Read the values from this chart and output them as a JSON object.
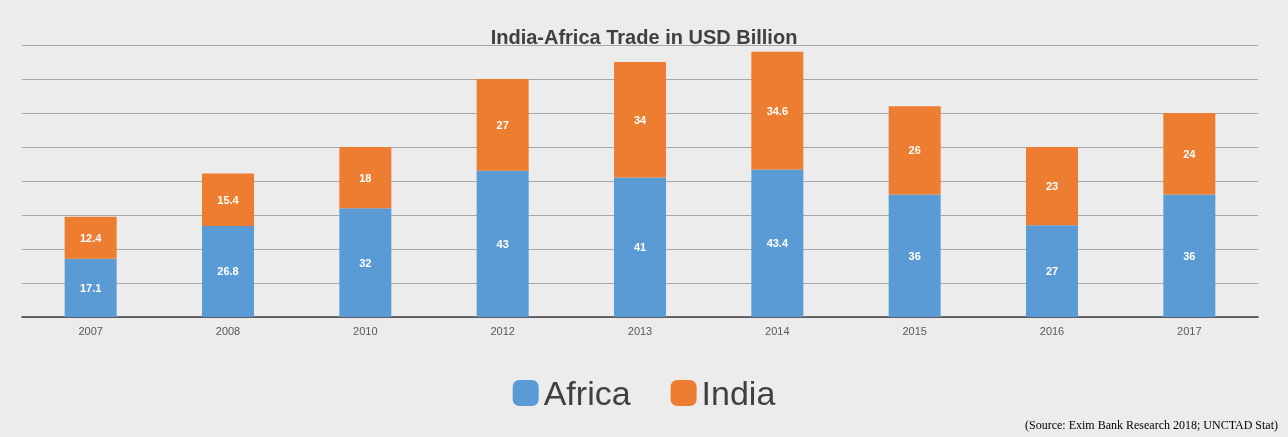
{
  "chart_data": {
    "type": "bar",
    "title": "India-Africa Trade in USD Billion",
    "stacked": true,
    "data_labels": true,
    "grid": "y",
    "legend": "bottom",
    "tick_labels": "x",
    "categories": [
      "2007",
      "2008",
      "2010",
      "2012",
      "2013",
      "2014",
      "2015",
      "2016",
      "2017"
    ],
    "series": [
      {
        "name": "Africa",
        "color": "#5b9bd5",
        "values": [
          17.1,
          26.8,
          32,
          43,
          41,
          43.4,
          36,
          27,
          36
        ]
      },
      {
        "name": "India",
        "color": "#ed7d31",
        "values": [
          12.4,
          15.4,
          18,
          27,
          34,
          34.6,
          26,
          23,
          24
        ]
      }
    ],
    "ylim": [
      0,
      80
    ],
    "yticks": [
      {
        "value": 0,
        "label": null
      },
      {
        "value": 10,
        "label": null
      },
      {
        "value": 20,
        "label": null
      },
      {
        "value": 30,
        "label": null
      },
      {
        "value": 40,
        "label": null
      },
      {
        "value": 50,
        "label": null
      },
      {
        "value": 60,
        "label": null
      },
      {
        "value": 70,
        "label": null
      },
      {
        "value": 80,
        "label": null
      }
    ],
    "annotations": [
      "(Source: Exim Bank Research 2018; UNCTAD Stat)"
    ]
  }
}
